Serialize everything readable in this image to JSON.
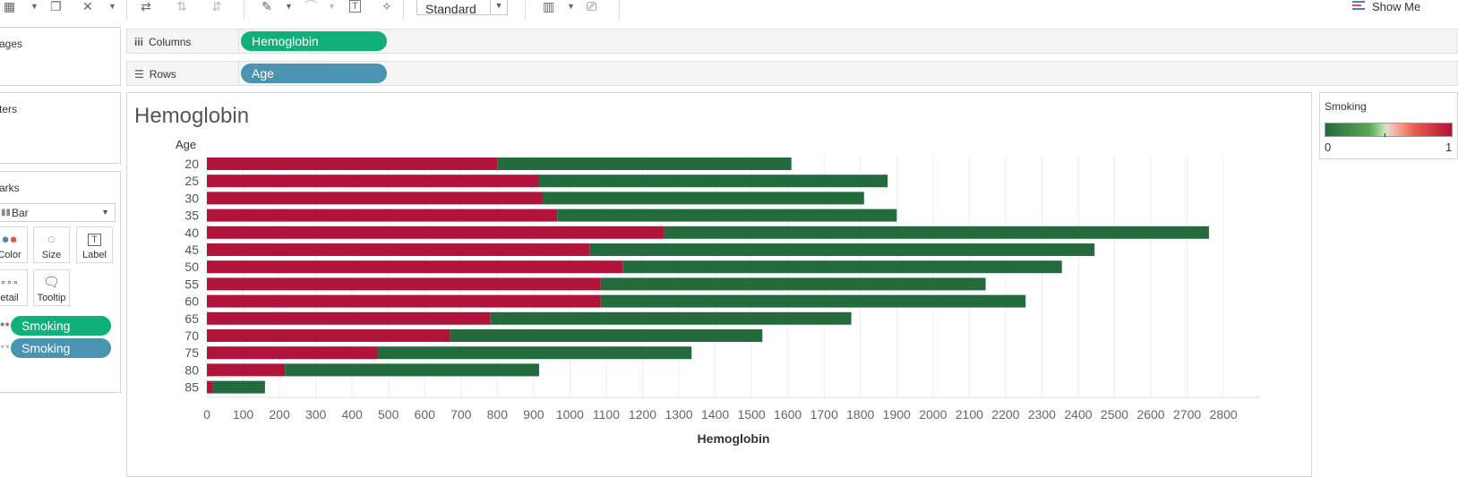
{
  "toolbar": {
    "view_mode": "Standard",
    "show_me": "Show Me"
  },
  "panes": {
    "pages_label": "ages",
    "filters_label": "ters",
    "marks_label": "arks",
    "mark_type": "Bar",
    "cards": {
      "color": "Color",
      "size": "Size",
      "label": "Label",
      "detail": "etail",
      "tooltip": "Tooltip"
    },
    "mark_pills": [
      "Smoking",
      "Smoking"
    ]
  },
  "shelves": {
    "columns_label": "Columns",
    "columns_pill": "Hemoglobin",
    "rows_label": "Rows",
    "rows_pill": "Age"
  },
  "legend": {
    "title": "Smoking",
    "min": "0",
    "max": "1",
    "color_low": "#236a3c",
    "color_high": "#b0143a"
  },
  "chart_data": {
    "type": "bar",
    "orientation": "horizontal",
    "stacked": true,
    "title": "Hemoglobin",
    "xlabel": "Hemoglobin",
    "ylabel": "Age",
    "categories": [
      "20",
      "25",
      "30",
      "35",
      "40",
      "45",
      "50",
      "55",
      "60",
      "65",
      "70",
      "75",
      "80",
      "85"
    ],
    "series": [
      {
        "color": "#b0143a",
        "values": [
          800,
          915,
          925,
          965,
          1260,
          1055,
          1145,
          1085,
          1085,
          780,
          670,
          470,
          215,
          15
        ]
      },
      {
        "color": "#236a3c",
        "values": [
          810,
          960,
          885,
          935,
          1500,
          1390,
          1210,
          1060,
          1170,
          995,
          860,
          865,
          700,
          145
        ]
      }
    ],
    "xlim": [
      0,
      2900
    ],
    "xticks": [
      0,
      100,
      200,
      300,
      400,
      500,
      600,
      700,
      800,
      900,
      1000,
      1100,
      1200,
      1300,
      1400,
      1500,
      1600,
      1700,
      1800,
      1900,
      2000,
      2100,
      2200,
      2300,
      2400,
      2500,
      2600,
      2700,
      2800
    ],
    "grid": true
  }
}
